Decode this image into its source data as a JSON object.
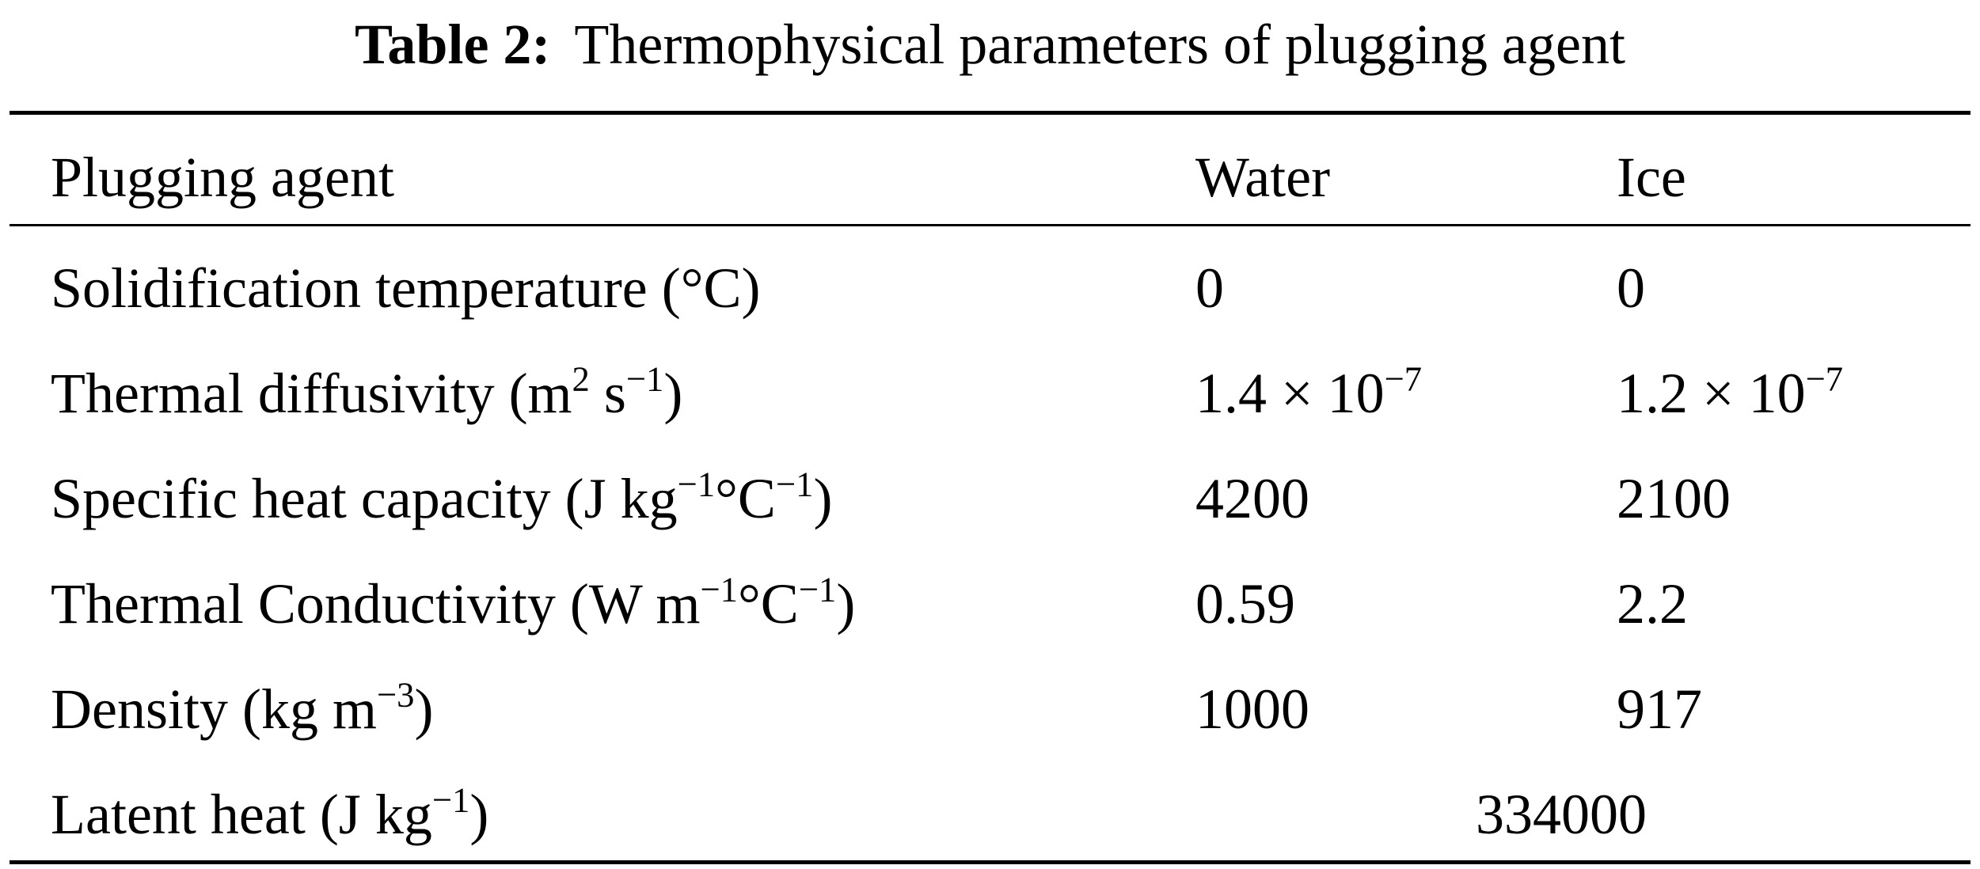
{
  "caption": {
    "label": "Table 2:",
    "text": "Thermophysical parameters of plugging agent"
  },
  "header": {
    "col0": "Plugging agent",
    "col1": "Water",
    "col2": "Ice"
  },
  "rows": [
    {
      "name": "Solidification temperature (°C)",
      "water": "0",
      "ice": "0"
    },
    {
      "name_pre": "Thermal diffusivity (m",
      "name_sup1": "2",
      "name_mid": " s",
      "name_sup2": "−1",
      "name_post": ")",
      "water_base": "1.4 × 10",
      "water_exp": "−7",
      "ice_base": "1.2 × 10",
      "ice_exp": "−7"
    },
    {
      "name_pre": "Specific heat capacity (J kg",
      "name_sup1": "−1",
      "name_mid": "°C",
      "name_sup2": "−1",
      "name_post": ")",
      "water": "4200",
      "ice": "2100"
    },
    {
      "name_pre": "Thermal Conductivity (W m",
      "name_sup1": "−1",
      "name_mid": "°C",
      "name_sup2": "−1",
      "name_post": ")",
      "water": "0.59",
      "ice": "2.2"
    },
    {
      "name_pre": "Density (kg m",
      "name_sup1": "−3",
      "name_post": ")",
      "water": "1000",
      "ice": "917"
    },
    {
      "name_pre": "Latent heat (J kg",
      "name_sup1": "−1",
      "name_post": ")",
      "merged": "334000"
    }
  ]
}
